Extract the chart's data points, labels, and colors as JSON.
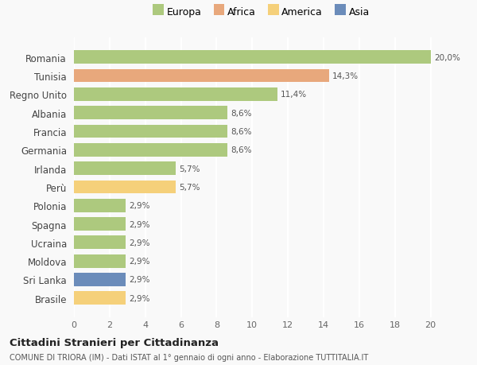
{
  "countries": [
    "Romania",
    "Tunisia",
    "Regno Unito",
    "Albania",
    "Francia",
    "Germania",
    "Irlanda",
    "Perù",
    "Polonia",
    "Spagna",
    "Ucraina",
    "Moldova",
    "Sri Lanka",
    "Brasile"
  ],
  "values": [
    20.0,
    14.3,
    11.4,
    8.6,
    8.6,
    8.6,
    5.7,
    5.7,
    2.9,
    2.9,
    2.9,
    2.9,
    2.9,
    2.9
  ],
  "labels": [
    "20,0%",
    "14,3%",
    "11,4%",
    "8,6%",
    "8,6%",
    "8,6%",
    "5,7%",
    "5,7%",
    "2,9%",
    "2,9%",
    "2,9%",
    "2,9%",
    "2,9%",
    "2,9%"
  ],
  "continents": [
    "Europa",
    "Africa",
    "Europa",
    "Europa",
    "Europa",
    "Europa",
    "Europa",
    "America",
    "Europa",
    "Europa",
    "Europa",
    "Europa",
    "Asia",
    "America"
  ],
  "colors": {
    "Europa": "#adc97e",
    "Africa": "#e8a87c",
    "America": "#f5d07a",
    "Asia": "#6b8cba"
  },
  "xlim": [
    0,
    21
  ],
  "xticks": [
    0,
    2,
    4,
    6,
    8,
    10,
    12,
    14,
    16,
    18,
    20
  ],
  "title": "Cittadini Stranieri per Cittadinanza",
  "subtitle": "COMUNE DI TRIORA (IM) - Dati ISTAT al 1° gennaio di ogni anno - Elaborazione TUTTITALIA.IT",
  "background_color": "#f9f9f9",
  "grid_color": "#ffffff",
  "bar_height": 0.72,
  "legend_order": [
    "Europa",
    "Africa",
    "America",
    "Asia"
  ]
}
